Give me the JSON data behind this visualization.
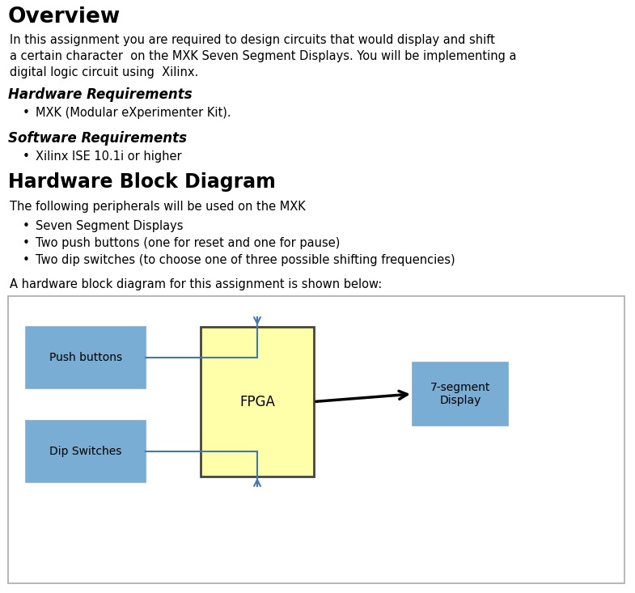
{
  "title": "Overview",
  "overview_text_line1": "In this assignment you are required to design circuits that would display and shift",
  "overview_text_line2": "a certain character  on the MXK Seven Segment Displays. You will be implementing a",
  "overview_text_line3": "digital logic circuit using  Xilinx.",
  "hw_req_title": "Hardware Requirements",
  "hw_req_items": [
    "MXK (Modular eXperimenter Kit)."
  ],
  "sw_req_title": "Software Requirements",
  "sw_req_items": [
    "Xilinx ISE 10.1i or higher"
  ],
  "hbd_title": "Hardware Block Diagram",
  "hbd_intro": "The following peripherals will be used on the MXK",
  "hbd_items": [
    "Seven Segment Displays",
    "Two push buttons (one for reset and one for pause)",
    "Two dip switches (to choose one of three possible shifting frequencies)"
  ],
  "diagram_intro": "A hardware block diagram for this assignment is shown below:",
  "block_push": "Push buttons",
  "block_dip": "Dip Switches",
  "block_fpga": "FPGA",
  "block_display": "7-segment\nDisplay",
  "bg_color": "#ffffff",
  "box_color_blue": "#7aadd4",
  "box_color_yellow": "#ffffaa",
  "diagram_border_color": "#aaaaaa",
  "connector_color": "#4477aa"
}
